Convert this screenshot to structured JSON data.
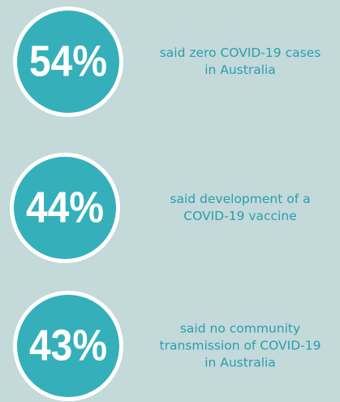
{
  "items": [
    {
      "stat": "54%",
      "lines": [
        "said zero COVID-19 cases",
        "in Australia"
      ]
    },
    {
      "stat": "44%",
      "lines": [
        "said development of a",
        "COVID-19 vaccine"
      ]
    },
    {
      "stat": "43%",
      "lines": [
        "said no community",
        "transmission of COVID-19",
        "in Australia"
      ]
    }
  ]
}
